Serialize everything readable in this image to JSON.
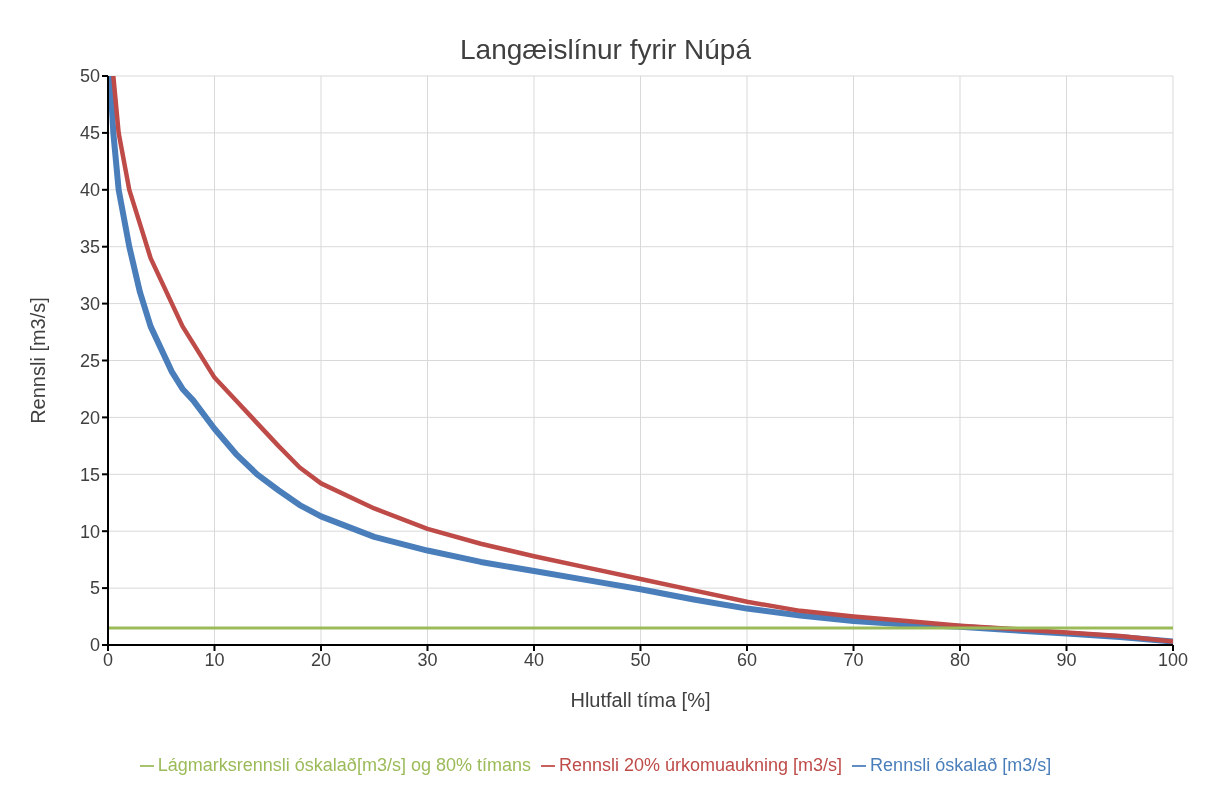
{
  "chart_data": {
    "type": "line",
    "title": "Langæislínur fyrir Núpá",
    "xlabel": "Hlutfall tíma [%]",
    "ylabel": "Rennsli [m3/s]",
    "xlim": [
      0,
      100
    ],
    "xticks": [
      0,
      10,
      20,
      30,
      40,
      50,
      60,
      70,
      80,
      90,
      100
    ],
    "ylim": [
      0,
      50
    ],
    "yticks": [
      0,
      5,
      10,
      15,
      20,
      25,
      30,
      35,
      40,
      45,
      50
    ],
    "grid": true,
    "legend": "bottom",
    "marker": "none",
    "line_style": "solid",
    "series": [
      {
        "name": "Rennsli óskalað [m3/s]",
        "color": "#4a7ebb",
        "x": [
          0.2,
          0.5,
          1,
          2,
          3,
          4,
          5,
          6,
          7,
          8,
          10,
          12,
          14,
          16,
          18,
          20,
          25,
          30,
          35,
          40,
          45,
          50,
          55,
          60,
          65,
          70,
          75,
          80,
          85,
          90,
          95,
          100
        ],
        "values": [
          50,
          45,
          40,
          35,
          31,
          28,
          26,
          24,
          22.5,
          21.5,
          19,
          16.8,
          15,
          13.6,
          12.3,
          11.3,
          9.5,
          8.3,
          7.3,
          6.5,
          5.7,
          4.9,
          4,
          3.2,
          2.6,
          2.1,
          1.8,
          1.6,
          1.3,
          1,
          0.7,
          0.3
        ]
      },
      {
        "name": "Rennsli 20% úrkomuaukning [m3/s]",
        "color": "#be4b48",
        "x": [
          0.5,
          1,
          2,
          3,
          4,
          5,
          6,
          7,
          8,
          10,
          12,
          14,
          16,
          18,
          20,
          25,
          30,
          35,
          40,
          45,
          50,
          55,
          60,
          65,
          70,
          75,
          80,
          85,
          90,
          95,
          100
        ],
        "values": [
          50,
          45,
          40,
          37,
          34,
          32,
          30,
          28,
          26.5,
          23.5,
          21.5,
          19.5,
          17.5,
          15.6,
          14.2,
          12,
          10.2,
          8.9,
          7.8,
          6.8,
          5.8,
          4.8,
          3.8,
          3,
          2.5,
          2.1,
          1.7,
          1.4,
          1.1,
          0.8,
          0.3
        ]
      },
      {
        "name": "Lágmarksrennsli óskalað[m3/s] og 80% tímans",
        "color": "#9bbb59",
        "x": [
          0,
          100
        ],
        "values": [
          1.5,
          1.5
        ]
      }
    ]
  }
}
